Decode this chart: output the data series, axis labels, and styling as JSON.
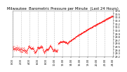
{
  "title": "Milwaukee  Barometric Pressure per Minute  (Last 24 Hours)",
  "background_color": "#ffffff",
  "plot_bg_color": "#ffffff",
  "grid_color": "#b0b0b0",
  "line_color": "#ff0000",
  "y_min": 29.2,
  "y_max": 30.6,
  "y_ticks": [
    29.2,
    29.3,
    29.4,
    29.5,
    29.6,
    29.7,
    29.8,
    29.9,
    30.0,
    30.1,
    30.2,
    30.3,
    30.4,
    30.5,
    30.6
  ],
  "num_points": 1440,
  "seed": 77,
  "x_tick_count": 13,
  "title_fontsize": 3.8,
  "tick_fontsize": 2.5,
  "marker_size": 0.7
}
